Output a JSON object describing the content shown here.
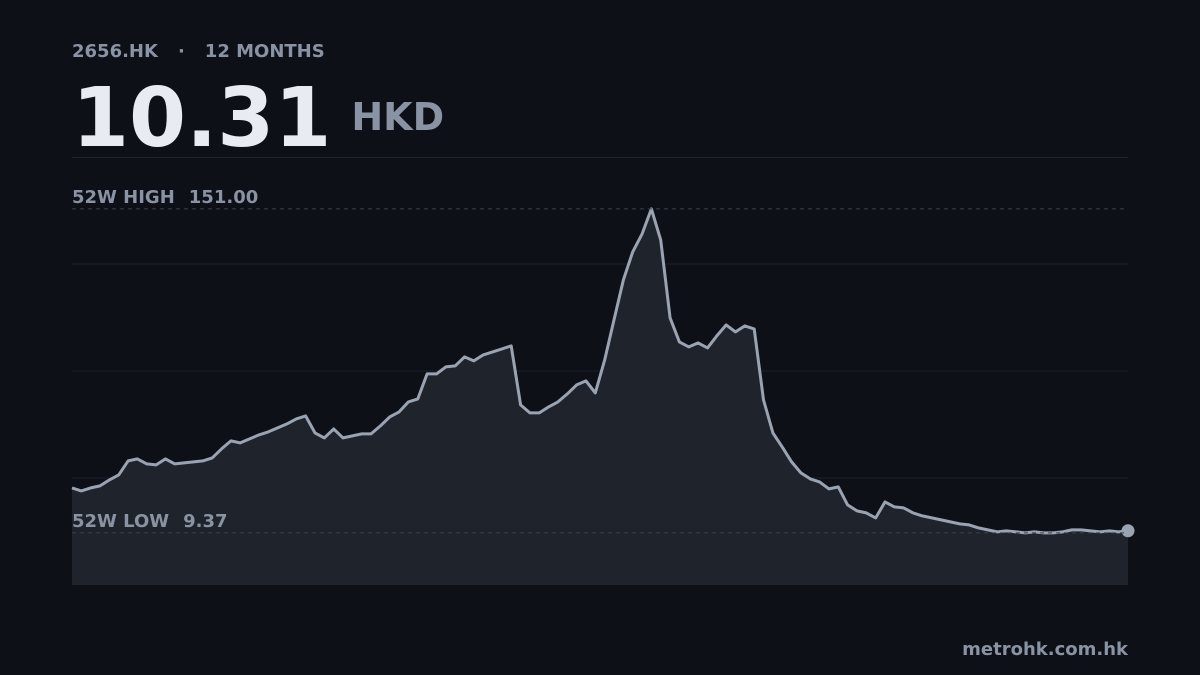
{
  "header": {
    "ticker": "2656.HK",
    "separator": "·",
    "period": "12 MONTHS",
    "currency": "HKD"
  },
  "chart_data": {
    "type": "area-line",
    "color": "#9aa3b2",
    "fill": "#1f232b",
    "ylim": [
      -13.4,
      173.7
    ],
    "categories": [
      null,
      null,
      null,
      null,
      null,
      null,
      null,
      null,
      null,
      null,
      null,
      null,
      null,
      null,
      null,
      null,
      null,
      null,
      null,
      null,
      null,
      null,
      null,
      null,
      null,
      null,
      null,
      null,
      null,
      null,
      null,
      null,
      null,
      null,
      null,
      null,
      null,
      null,
      null,
      null,
      null,
      null,
      null,
      null,
      null,
      null,
      null,
      null,
      null,
      null,
      null,
      null,
      null,
      null,
      null,
      null,
      null,
      null,
      null,
      null,
      null,
      null,
      null,
      null,
      null,
      null,
      null,
      null,
      null,
      null,
      null,
      null,
      null,
      null,
      null,
      null,
      null,
      null,
      null,
      null,
      null,
      null,
      null,
      null,
      null,
      null,
      null,
      null,
      null,
      null,
      null,
      null,
      null,
      null,
      null,
      null,
      null,
      null,
      null,
      null,
      null,
      null,
      null,
      null,
      null,
      null,
      null,
      null,
      null,
      null,
      null,
      null,
      null,
      null
    ],
    "values": [
      29.05,
      27.74,
      29.05,
      29.92,
      32.55,
      34.73,
      40.85,
      41.72,
      39.54,
      39.1,
      41.72,
      39.54,
      39.98,
      40.41,
      40.85,
      42.16,
      46.1,
      49.59,
      48.72,
      50.47,
      52.22,
      53.53,
      55.28,
      57.02,
      59.21,
      60.52,
      53.09,
      50.9,
      54.84,
      50.9,
      51.78,
      52.65,
      52.65,
      56.15,
      60.08,
      62.27,
      66.64,
      67.95,
      78.88,
      78.88,
      81.94,
      82.38,
      86.31,
      84.56,
      87.18,
      88.49,
      89.81,
      91.12,
      65.33,
      61.83,
      61.83,
      64.45,
      66.64,
      70.14,
      74.07,
      75.82,
      70.57,
      85.0,
      102.48,
      119.97,
      132.2,
      140.07,
      151,
      137.45,
      103.36,
      92.87,
      90.68,
      92.43,
      90.24,
      95.49,
      100.3,
      97.24,
      99.86,
      98.55,
      67.51,
      53.09,
      46.97,
      40.41,
      35.61,
      32.98,
      31.67,
      28.61,
      29.49,
      21.62,
      19.0,
      18.12,
      15.94,
      22.93,
      20.74,
      20.31,
      18.12,
      16.81,
      15.94,
      15.06,
      14.19,
      13.31,
      12.88,
      11.57,
      10.69,
      9.82,
      10.25,
      9.82,
      9.37,
      9.82,
      9.37,
      9.37,
      9.82,
      10.69,
      10.69,
      10.25,
      9.82,
      10.25,
      9.82,
      10.31
    ],
    "reference_lines": [
      {
        "label": "52W HIGH",
        "value": {
          "value": 151,
          "label": "151.00"
        }
      },
      {
        "label": "52W LOW",
        "value": 9.37
      }
    ]
  },
  "footer": {
    "source": "metrohk.com.hk"
  }
}
